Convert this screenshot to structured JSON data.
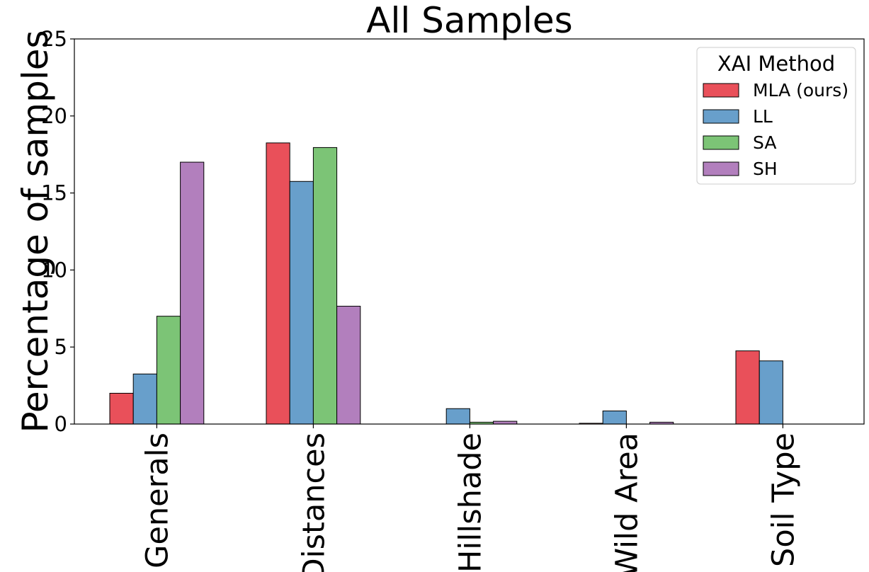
{
  "chart_data": {
    "type": "bar",
    "title": "All Samples",
    "xlabel": "",
    "ylabel": "Percentage of samples",
    "ylim": [
      0,
      25
    ],
    "yticks": [
      0,
      5,
      10,
      15,
      20,
      25
    ],
    "categories": [
      "Generals",
      "Distances",
      "Hillshade",
      "Wild Area",
      "Soil Type"
    ],
    "legend": {
      "title": "XAI Method",
      "placement": "top-right"
    },
    "grid": false,
    "series": [
      {
        "name": "MLA (ours)",
        "color": "#e9505a",
        "values": [
          2.0,
          18.25,
          0.0,
          0.05,
          4.75
        ]
      },
      {
        "name": "LL",
        "color": "#689fcb",
        "values": [
          3.25,
          15.75,
          1.0,
          0.85,
          4.1
        ]
      },
      {
        "name": "SA",
        "color": "#7cc476",
        "values": [
          7.0,
          17.95,
          0.12,
          0.0,
          0.0
        ]
      },
      {
        "name": "SH",
        "color": "#b27fbd",
        "values": [
          17.0,
          7.65,
          0.18,
          0.12,
          0.0
        ]
      }
    ]
  }
}
